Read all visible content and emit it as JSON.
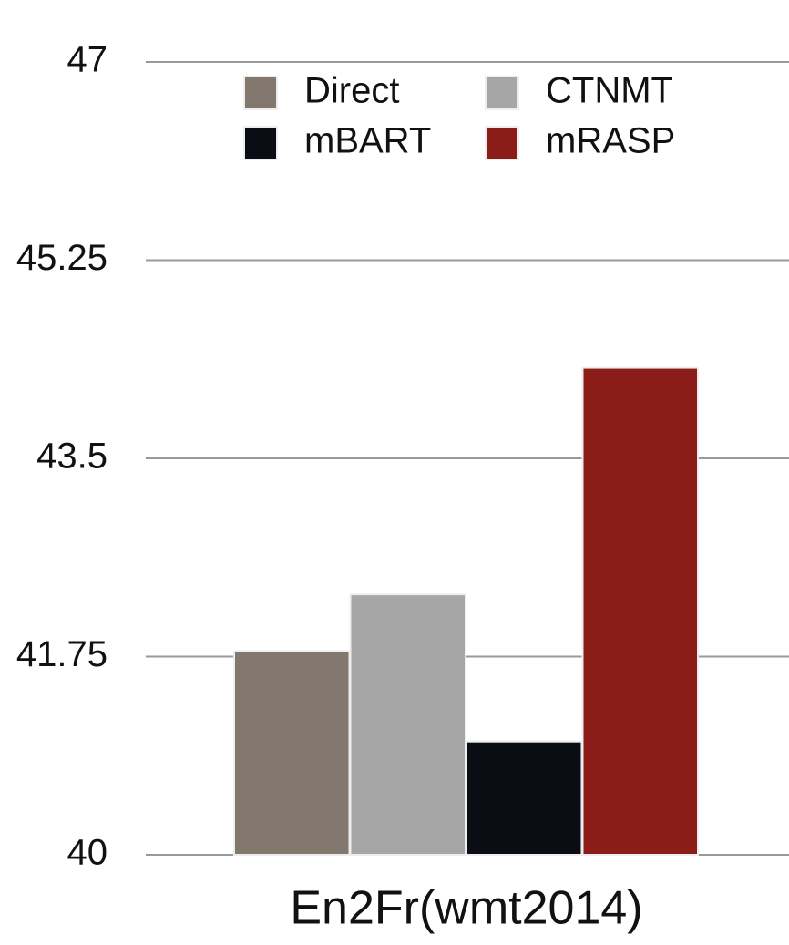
{
  "chart_data": {
    "type": "bar",
    "categories": [
      "En2Fr(wmt2014)"
    ],
    "series": [
      {
        "name": "Direct",
        "color": "#82786e",
        "values": [
          41.8
        ]
      },
      {
        "name": "CTNMT",
        "color": "#a6a6a6",
        "values": [
          42.3
        ]
      },
      {
        "name": "mBART",
        "color": "#0a0d14",
        "values": [
          41.0
        ]
      },
      {
        "name": "mRASP",
        "color": "#8b1c17",
        "values": [
          44.3
        ]
      }
    ],
    "ylim": [
      40,
      47
    ],
    "yticks": [
      40,
      41.75,
      43.5,
      45.25,
      47
    ],
    "grid": true,
    "legend": "top"
  }
}
